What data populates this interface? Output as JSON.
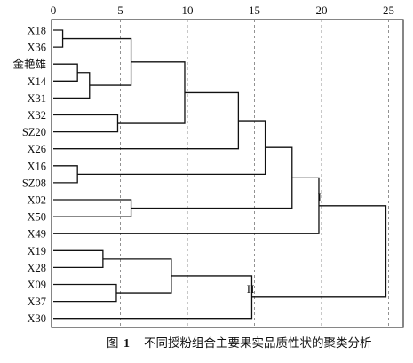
{
  "chart_data": {
    "type": "dendrogram",
    "caption_label": "图",
    "caption_number": "1",
    "caption_title": "不同授粉组合主要果实品质性状的聚类分析",
    "x_ticks": [
      0,
      5,
      10,
      15,
      20,
      25
    ],
    "x_range": [
      0,
      26
    ],
    "leaves": [
      "X18",
      "X36",
      "金艳雄",
      "X14",
      "X31",
      "X32",
      "SZ20",
      "X26",
      "X16",
      "SZ08",
      "X02",
      "X50",
      "X49",
      "X19",
      "X28",
      "X09",
      "X37",
      "X30"
    ],
    "merges": [
      {
        "left": 0,
        "right": 1,
        "distance": 0.7
      },
      {
        "left": 2,
        "right": 3,
        "distance": 1.8
      },
      {
        "left": "m1",
        "right": 4,
        "distance": 2.7
      },
      {
        "left": 8,
        "right": 9,
        "distance": 1.8
      },
      {
        "left": 13,
        "right": 14,
        "distance": 3.7
      },
      {
        "left": 15,
        "right": 16,
        "distance": 4.7
      },
      {
        "left": 5,
        "right": 6,
        "distance": 4.8
      },
      {
        "left": "m0",
        "right": "m2",
        "distance": 5.8
      },
      {
        "left": 10,
        "right": 11,
        "distance": 5.8
      },
      {
        "left": "m4",
        "right": "m5",
        "distance": 8.8
      },
      {
        "left": "m7",
        "right": "m6",
        "distance": 9.8
      },
      {
        "left": "m10",
        "right": 7,
        "distance": 13.8
      },
      {
        "left": "m9",
        "right": 17,
        "distance": 14.8
      },
      {
        "left": "m11",
        "right": "m3",
        "distance": 15.8
      },
      {
        "left": "m13",
        "right": "m8",
        "distance": 17.8
      },
      {
        "left": "m14",
        "right": 12,
        "distance": 19.8
      },
      {
        "left": "m15",
        "right": "m12",
        "distance": 24.8
      }
    ],
    "cluster_labels": [
      {
        "text": "I",
        "merge": "m15"
      },
      {
        "text": "II",
        "merge": "m12"
      }
    ],
    "grid": "dashed vertical at ticks 5, 10, 15, 20, 25"
  }
}
